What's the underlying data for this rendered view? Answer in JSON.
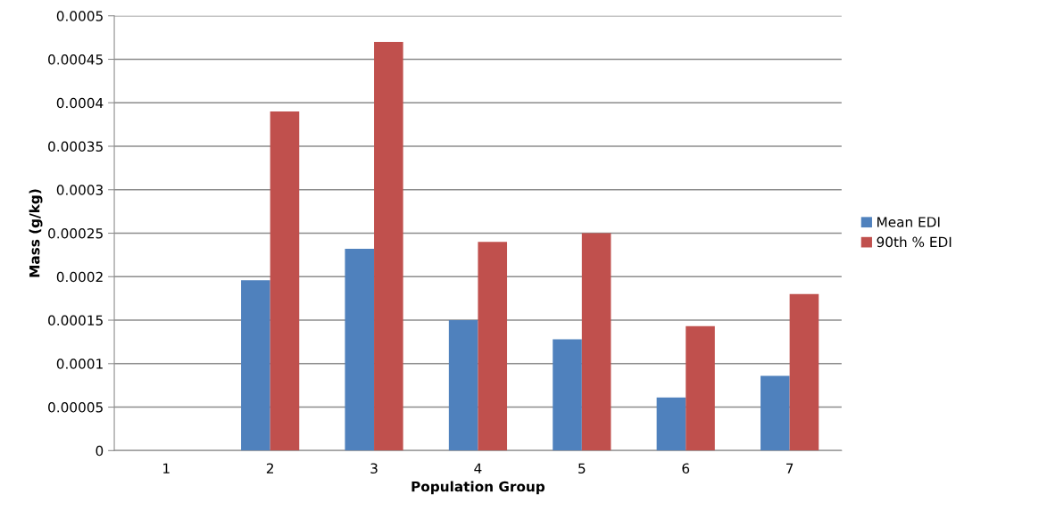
{
  "chart_data": {
    "type": "bar",
    "xlabel": "Population Group",
    "ylabel": "Mass (g/kg)",
    "categories": [
      "1",
      "2",
      "3",
      "4",
      "5",
      "6",
      "7"
    ],
    "series": [
      {
        "name": "Mean EDI",
        "color": "#4f81bd",
        "values": [
          0,
          0.000196,
          0.000232,
          0.00015,
          0.000128,
          6.1e-05,
          8.6e-05
        ]
      },
      {
        "name": "90th % EDI",
        "color": "#c0504d",
        "values": [
          0,
          0.00039,
          0.00047,
          0.00024,
          0.00025,
          0.000143,
          0.00018
        ]
      }
    ],
    "ylim": [
      0,
      0.0005
    ],
    "yticks": [
      {
        "value": 0,
        "label": "0"
      },
      {
        "value": 5e-05,
        "label": "0.00005"
      },
      {
        "value": 0.0001,
        "label": "0.0001"
      },
      {
        "value": 0.00015,
        "label": "0.00015"
      },
      {
        "value": 0.0002,
        "label": "0.0002"
      },
      {
        "value": 0.00025,
        "label": "0.00025"
      },
      {
        "value": 0.0003,
        "label": "0.0003"
      },
      {
        "value": 0.00035,
        "label": "0.00035"
      },
      {
        "value": 0.0004,
        "label": "0.0004"
      },
      {
        "value": 0.00045,
        "label": "0.00045"
      },
      {
        "value": 0.0005,
        "label": "0.0005"
      }
    ],
    "grid": "y",
    "legend": "right"
  }
}
